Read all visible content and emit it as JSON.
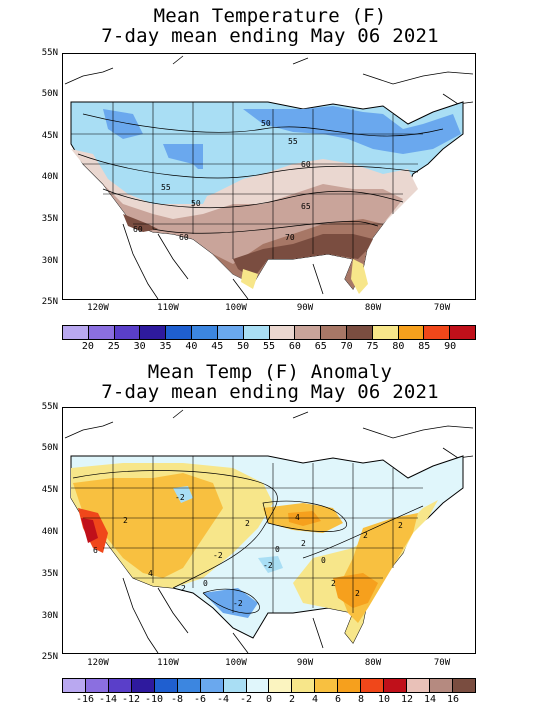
{
  "panel_temp": {
    "title_line1": "Mean Temperature (F)",
    "title_line2": "7-day mean ending May 06 2021",
    "contour_labels": [
      "50",
      "55",
      "60",
      "55",
      "50",
      "60",
      "65",
      "70",
      "60"
    ],
    "legend_values": [
      "20",
      "25",
      "30",
      "35",
      "40",
      "45",
      "50",
      "55",
      "60",
      "65",
      "70",
      "75",
      "80",
      "85",
      "90"
    ],
    "legend_colors": [
      "#b9a8f0",
      "#8b6fe0",
      "#5a3fc9",
      "#2e1a9e",
      "#1f5fd0",
      "#3c86e0",
      "#6aa8ee",
      "#a9def4",
      "#ead7d0",
      "#c9a49a",
      "#a77766",
      "#7a4d40",
      "#f7e68a",
      "#f6a01d",
      "#f0471a",
      "#c0101a"
    ]
  },
  "panel_anom": {
    "title_line1": "Mean Temp (F) Anomaly",
    "title_line2": "7-day mean ending May 06 2021",
    "contour_labels": [
      "6",
      "4",
      "2",
      "0",
      "2",
      "4",
      "-2",
      "0",
      "2",
      "-2",
      "2",
      "2",
      "2",
      "0",
      "2",
      "-2",
      "2",
      "-2"
    ],
    "legend_values": [
      "-16",
      "-14",
      "-12",
      "-10",
      "-8",
      "-6",
      "-4",
      "-2",
      "0",
      "2",
      "4",
      "6",
      "8",
      "10",
      "12",
      "14",
      "16"
    ],
    "legend_colors": [
      "#b9a8f0",
      "#8b6fe0",
      "#5a3fc9",
      "#2e1a9e",
      "#1f5fd0",
      "#3c86e0",
      "#6aa8ee",
      "#a9def4",
      "#e0f6fb",
      "#fbf4c0",
      "#f7e68a",
      "#f8c040",
      "#f6a01d",
      "#f0471a",
      "#c0101a",
      "#e9c1b8",
      "#b58a80",
      "#7a4d40"
    ]
  },
  "axes": {
    "lat_labels": [
      "55N",
      "50N",
      "45N",
      "40N",
      "35N",
      "30N",
      "25N"
    ],
    "lon_labels": [
      "120W",
      "110W",
      "100W",
      "90W",
      "80W",
      "70W"
    ]
  }
}
